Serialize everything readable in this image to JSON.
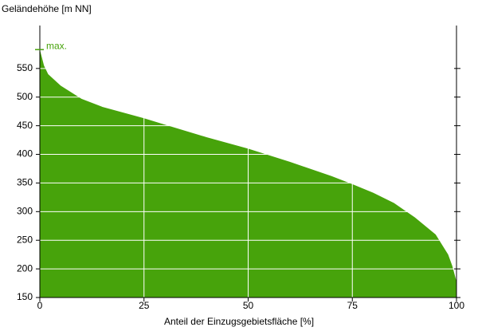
{
  "chart_data": {
    "type": "area",
    "title": "Geländehöhe [m NN]",
    "x_label": "Anteil der Einzugsgebietsfläche [%]",
    "x": [
      0,
      1,
      2,
      5,
      10,
      15,
      20,
      25,
      30,
      40,
      50,
      60,
      70,
      75,
      80,
      85,
      90,
      95,
      98,
      99,
      100
    ],
    "series": [
      {
        "name": "Geländehöhe",
        "color": "#47a30b",
        "values": [
          583,
          555,
          540,
          520,
          497,
          483,
          473,
          463,
          452,
          430,
          410,
          387,
          362,
          348,
          333,
          315,
          290,
          260,
          225,
          205,
          178
        ]
      }
    ],
    "max_marker": {
      "label": "max.",
      "value": 583
    },
    "xlim": [
      0,
      100
    ],
    "xticks": [
      0,
      25,
      50,
      75,
      100
    ],
    "ylim": [
      150,
      625
    ],
    "yticks": [
      150,
      200,
      250,
      300,
      350,
      400,
      450,
      500,
      550
    ],
    "grid": true
  }
}
